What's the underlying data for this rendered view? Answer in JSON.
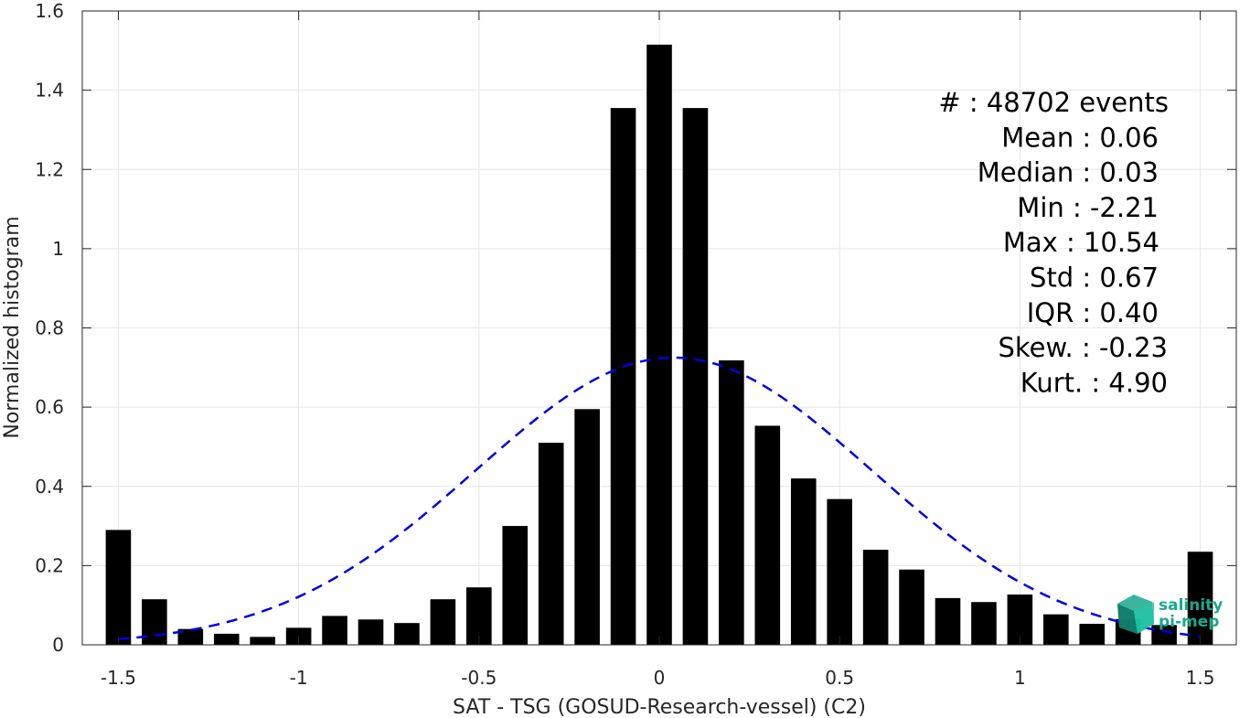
{
  "chart_data": {
    "type": "bar",
    "xlabel": "SAT - TSG (GOSUD-Research-vessel) (C2)",
    "ylabel": "Normalized histogram",
    "xlim": [
      -1.6,
      1.6
    ],
    "ylim": [
      0,
      1.6
    ],
    "xticks": [
      -1.5,
      -1,
      -0.5,
      0,
      0.5,
      1,
      1.5
    ],
    "xtick_labels": [
      "-1.5",
      "-1",
      "-0.5",
      "0",
      "0.5",
      "1",
      "1.5"
    ],
    "yticks": [
      0,
      0.2,
      0.4,
      0.6,
      0.8,
      1,
      1.2,
      1.4,
      1.6
    ],
    "ytick_labels": [
      "0",
      "0.2",
      "0.4",
      "0.6",
      "0.8",
      "1",
      "1.2",
      "1.4",
      "1.6"
    ],
    "grid": true,
    "bin_width": 0.1,
    "x": [
      -1.5,
      -1.4,
      -1.3,
      -1.2,
      -1.1,
      -1.0,
      -0.9,
      -0.8,
      -0.7,
      -0.6,
      -0.5,
      -0.4,
      -0.3,
      -0.2,
      -0.1,
      0.0,
      0.1,
      0.2,
      0.3,
      0.4,
      0.5,
      0.6,
      0.7,
      0.8,
      0.9,
      1.0,
      1.1,
      1.2,
      1.3,
      1.4,
      1.5
    ],
    "values": [
      0.29,
      0.115,
      0.04,
      0.028,
      0.02,
      0.043,
      0.073,
      0.064,
      0.055,
      0.115,
      0.145,
      0.3,
      0.51,
      0.595,
      1.355,
      1.515,
      1.355,
      0.718,
      0.553,
      0.42,
      0.368,
      0.24,
      0.19,
      0.118,
      0.108,
      0.127,
      0.077,
      0.053,
      0.065,
      0.05,
      0.235
    ],
    "bar_color": "#000000",
    "fit_curve": {
      "style": "dashed",
      "color": "#0000e6",
      "mean": 0.04,
      "peak": 0.725,
      "sigma": 0.55,
      "x_range": [
        -1.5,
        1.5
      ]
    },
    "stats": [
      {
        "label": "#  : 48702 events",
        "anchor": "end",
        "right": 1278
      },
      {
        "label": "Mean : 0.06",
        "anchor": "end",
        "right": 1267
      },
      {
        "label": "Median : 0.03",
        "anchor": "end",
        "right": 1267
      },
      {
        "label": "Min : -2.21",
        "anchor": "end",
        "right": 1267
      },
      {
        "label": "Max : 10.54",
        "anchor": "end",
        "right": 1268
      },
      {
        "label": "Std : 0.67",
        "anchor": "end",
        "right": 1267
      },
      {
        "label": "IQR : 0.40",
        "anchor": "end",
        "right": 1267
      },
      {
        "label": "Skew. : -0.23",
        "anchor": "end",
        "right": 1277
      },
      {
        "label": "Kurt. : 4.90",
        "anchor": "end",
        "right": 1277
      }
    ]
  },
  "logo": {
    "line1": "salinity",
    "line2": "pi-mep",
    "icon": "salinity-cube-icon",
    "color": "#1aa88f"
  }
}
